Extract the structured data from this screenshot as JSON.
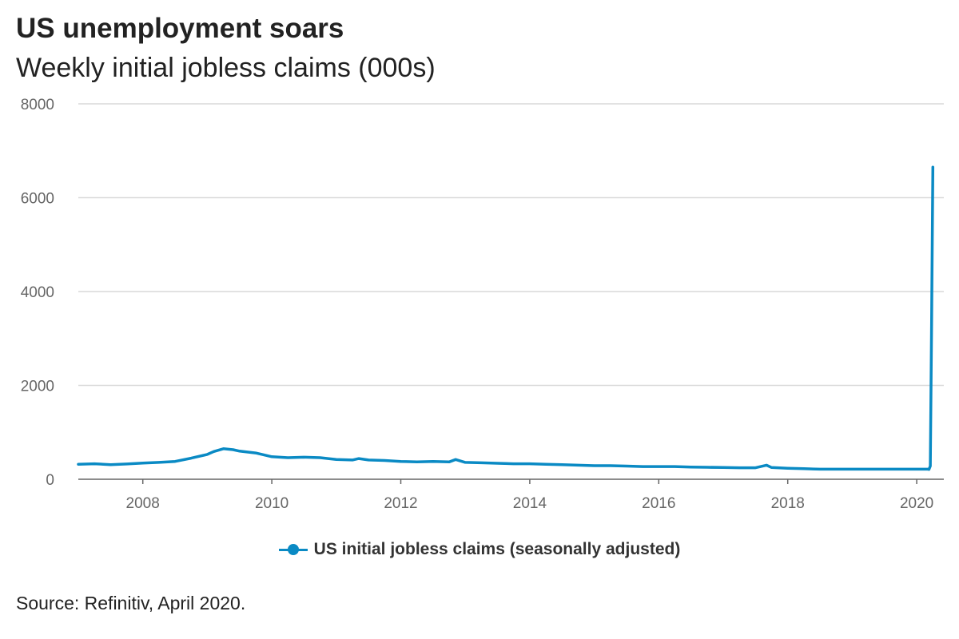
{
  "header": {
    "title": "US unemployment soars",
    "subtitle": "Weekly initial jobless claims (000s)"
  },
  "legend": {
    "label": "US initial jobless claims (seasonally adjusted)"
  },
  "footer": {
    "source": "Source: Refinitiv, April 2020."
  },
  "colors": {
    "series": "#0a8ac4",
    "grid": "#d9d9d9",
    "axis": "#666666"
  },
  "chart_data": {
    "type": "line",
    "title": "US unemployment soars",
    "subtitle": "Weekly initial jobless claims (000s)",
    "xlabel": "",
    "ylabel": "",
    "xlim": [
      2007.0,
      2020.42
    ],
    "ylim": [
      0,
      8000
    ],
    "yticks": [
      0,
      2000,
      4000,
      6000,
      8000
    ],
    "xticks": [
      2008,
      2010,
      2012,
      2014,
      2016,
      2018,
      2020
    ],
    "grid": true,
    "legend_position": "bottom",
    "series": [
      {
        "name": "US initial jobless claims (seasonally adjusted)",
        "x": [
          2007.0,
          2007.25,
          2007.5,
          2007.75,
          2008.0,
          2008.25,
          2008.5,
          2008.75,
          2009.0,
          2009.1,
          2009.25,
          2009.4,
          2009.5,
          2009.75,
          2010.0,
          2010.25,
          2010.5,
          2010.75,
          2011.0,
          2011.25,
          2011.35,
          2011.5,
          2011.75,
          2012.0,
          2012.25,
          2012.5,
          2012.75,
          2012.85,
          2013.0,
          2013.25,
          2013.5,
          2013.75,
          2014.0,
          2014.25,
          2014.5,
          2014.75,
          2015.0,
          2015.25,
          2015.5,
          2015.75,
          2016.0,
          2016.25,
          2016.5,
          2016.75,
          2017.0,
          2017.25,
          2017.5,
          2017.67,
          2017.75,
          2018.0,
          2018.25,
          2018.5,
          2018.75,
          2019.0,
          2019.25,
          2019.5,
          2019.75,
          2020.0,
          2020.1,
          2020.17,
          2020.19,
          2020.21,
          2020.23,
          2020.25
        ],
        "values": [
          320,
          330,
          310,
          325,
          345,
          360,
          380,
          450,
          530,
          590,
          650,
          630,
          600,
          560,
          480,
          460,
          470,
          460,
          420,
          410,
          440,
          410,
          400,
          380,
          370,
          380,
          370,
          420,
          360,
          350,
          340,
          330,
          330,
          320,
          310,
          300,
          290,
          290,
          280,
          270,
          270,
          270,
          260,
          255,
          250,
          245,
          245,
          300,
          250,
          235,
          225,
          215,
          215,
          215,
          215,
          215,
          215,
          215,
          215,
          215,
          210,
          280,
          3300,
          6650
        ]
      }
    ]
  }
}
